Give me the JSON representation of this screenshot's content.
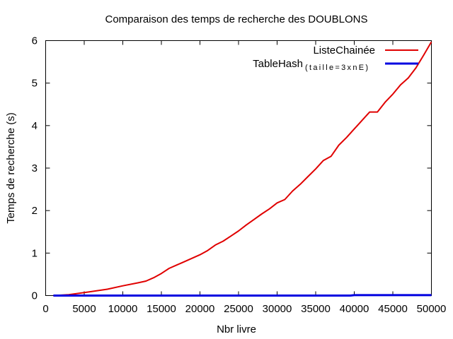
{
  "chart_data": {
    "type": "line",
    "title": "Comparaison des temps de recherche des DOUBLONS",
    "xlabel": "Nbr livre",
    "ylabel": "Temps de recherche (s)",
    "xlim": [
      0,
      50000
    ],
    "ylim": [
      0,
      6
    ],
    "x_ticks": [
      0,
      5000,
      10000,
      15000,
      20000,
      25000,
      30000,
      35000,
      40000,
      45000,
      50000
    ],
    "y_ticks": [
      0,
      1,
      2,
      3,
      4,
      5,
      6
    ],
    "grid": false,
    "legend_position": "top-right",
    "series": [
      {
        "name": "ListeChainée",
        "name_suffix": "",
        "color": "#e00000",
        "x": [
          1000,
          3000,
          5000,
          8000,
          10000,
          12000,
          13000,
          14000,
          15000,
          16000,
          17000,
          18000,
          19000,
          20000,
          21000,
          22000,
          23000,
          24000,
          25000,
          26000,
          27000,
          28000,
          29000,
          30000,
          31000,
          32000,
          33000,
          34000,
          35000,
          36000,
          37000,
          38000,
          39000,
          40000,
          41000,
          42000,
          43000,
          44000,
          45000,
          46000,
          47000,
          48000,
          49000,
          50000
        ],
        "values": [
          0.0,
          0.02,
          0.07,
          0.15,
          0.23,
          0.3,
          0.34,
          0.42,
          0.52,
          0.64,
          0.72,
          0.8,
          0.88,
          0.96,
          1.06,
          1.19,
          1.28,
          1.4,
          1.52,
          1.66,
          1.79,
          1.92,
          2.04,
          2.18,
          2.26,
          2.46,
          2.62,
          2.8,
          2.98,
          3.18,
          3.28,
          3.54,
          3.72,
          3.92,
          4.12,
          4.32,
          4.32,
          4.55,
          4.74,
          4.96,
          5.12,
          5.36,
          5.66,
          5.97
        ]
      },
      {
        "name": "TableHash",
        "name_suffix": "(taille=3xnE)",
        "color": "#0000e0",
        "x": [
          1000,
          39500,
          40000,
          50000
        ],
        "values": [
          0.0,
          0.0,
          0.01,
          0.01
        ]
      }
    ]
  }
}
